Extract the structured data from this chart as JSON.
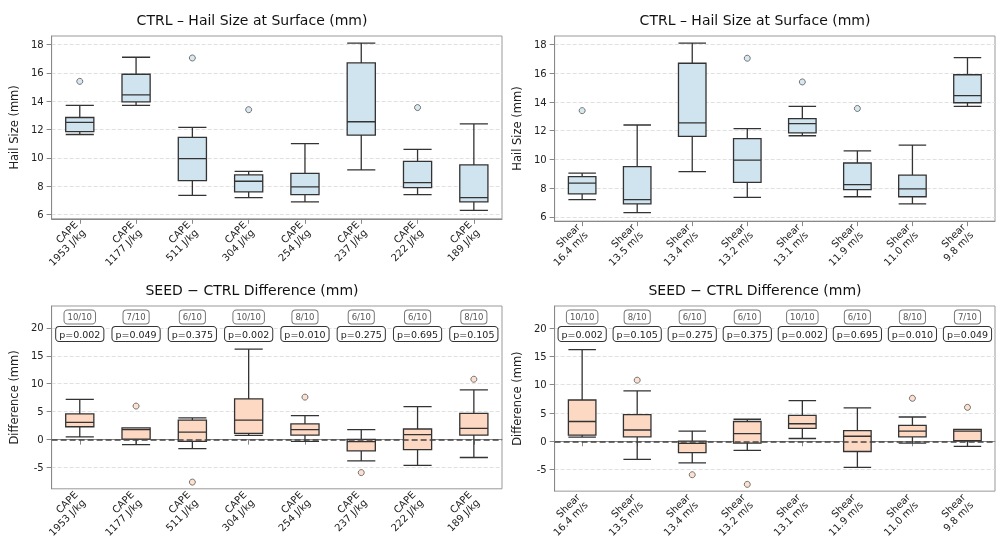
{
  "chart_data": [
    {
      "type": "box",
      "title": "CTRL – Hail Size at Surface (mm)",
      "ylabel": "Hail Size (mm)",
      "categories": [
        "CAPE\n1953 J/kg",
        "CAPE\n1177 J/kg",
        "CAPE\n511 J/kg",
        "CAPE\n304 J/kg",
        "CAPE\n254 J/kg",
        "CAPE\n237 J/kg",
        "CAPE\n222 J/kg",
        "CAPE\n189 J/kg"
      ],
      "ylim": [
        5.7,
        18.6
      ],
      "yticks": [
        6,
        8,
        10,
        12,
        14,
        16,
        18
      ],
      "grid": "y",
      "series": [
        {
          "color": "#d0e4ef",
          "boxes": [
            {
              "low": 11.65,
              "q1": 11.85,
              "median": 12.5,
              "q3": 12.85,
              "high": 13.7,
              "outliers": [
                15.4
              ]
            },
            {
              "low": 13.7,
              "q1": 13.95,
              "median": 14.45,
              "q3": 15.9,
              "high": 17.1
            },
            {
              "low": 7.35,
              "q1": 8.4,
              "median": 9.95,
              "q3": 11.45,
              "high": 12.15,
              "outliers": [
                17.05
              ]
            },
            {
              "low": 7.2,
              "q1": 7.6,
              "median": 8.35,
              "q3": 8.8,
              "high": 9.05,
              "outliers": [
                13.4
              ]
            },
            {
              "low": 6.9,
              "q1": 7.4,
              "median": 7.95,
              "q3": 8.9,
              "high": 11.0
            },
            {
              "low": 9.15,
              "q1": 11.6,
              "median": 12.55,
              "q3": 16.7,
              "high": 18.1
            },
            {
              "low": 7.4,
              "q1": 7.9,
              "median": 8.25,
              "q3": 9.75,
              "high": 10.6,
              "outliers": [
                13.55
              ]
            },
            {
              "low": 6.3,
              "q1": 6.9,
              "median": 7.2,
              "q3": 9.5,
              "high": 12.4
            }
          ]
        }
      ]
    },
    {
      "type": "box",
      "title": "CTRL – Hail Size at Surface (mm)",
      "ylabel": "Hail Size (mm)",
      "categories": [
        "Shear\n16.4 m/s",
        "Shear\n13.5 m/s",
        "Shear\n13.4 m/s",
        "Shear\n13.2 m/s",
        "Shear\n13.1 m/s",
        "Shear\n11.9 m/s",
        "Shear\n11.0 m/s",
        "Shear\n9.8 m/s"
      ],
      "ylim": [
        5.7,
        18.6
      ],
      "yticks": [
        6,
        8,
        10,
        12,
        14,
        16,
        18
      ],
      "grid": "y",
      "series": [
        {
          "color": "#d0e4ef",
          "boxes": [
            {
              "low": 7.2,
              "q1": 7.6,
              "median": 8.35,
              "q3": 8.8,
              "high": 9.05,
              "outliers": [
                13.4
              ]
            },
            {
              "low": 6.3,
              "q1": 6.9,
              "median": 7.2,
              "q3": 9.5,
              "high": 12.4
            },
            {
              "low": 9.15,
              "q1": 11.6,
              "median": 12.55,
              "q3": 16.7,
              "high": 18.1
            },
            {
              "low": 7.35,
              "q1": 8.4,
              "median": 9.95,
              "q3": 11.45,
              "high": 12.15,
              "outliers": [
                17.05
              ]
            },
            {
              "low": 11.65,
              "q1": 11.85,
              "median": 12.5,
              "q3": 12.85,
              "high": 13.7,
              "outliers": [
                15.4
              ]
            },
            {
              "low": 7.4,
              "q1": 7.9,
              "median": 8.25,
              "q3": 9.75,
              "high": 10.6,
              "outliers": [
                13.55
              ]
            },
            {
              "low": 6.9,
              "q1": 7.4,
              "median": 7.95,
              "q3": 8.9,
              "high": 11.0
            },
            {
              "low": 13.7,
              "q1": 13.95,
              "median": 14.45,
              "q3": 15.9,
              "high": 17.1
            }
          ]
        }
      ]
    },
    {
      "type": "box",
      "title": "SEED − CTRL Difference (mm)",
      "ylabel": "Difference (mm)",
      "categories": [
        "CAPE\n1953 J/kg",
        "CAPE\n1177 J/kg",
        "CAPE\n511 J/kg",
        "CAPE\n304 J/kg",
        "CAPE\n254 J/kg",
        "CAPE\n237 J/kg",
        "CAPE\n222 J/kg",
        "CAPE\n189 J/kg"
      ],
      "ylim": [
        -8.8,
        23.9
      ],
      "yticks": [
        -5,
        0,
        5,
        10,
        15,
        20
      ],
      "grid": "y",
      "ref_lines": [
        {
          "axis": "y",
          "value": 0,
          "color": "#444444",
          "line_style": "dashed"
        }
      ],
      "series": [
        {
          "color": "#fdd9c4",
          "boxes": [
            {
              "low": 0.5,
              "q1": 2.3,
              "median": 3.1,
              "q3": 4.6,
              "high": 7.2
            },
            {
              "low": -0.9,
              "q1": 0.1,
              "median": 1.8,
              "q3": 2.1,
              "high": 2.1,
              "outliers": [
                6.0
              ]
            },
            {
              "low": -1.6,
              "q1": -0.3,
              "median": 1.35,
              "q3": 3.5,
              "high": 3.9,
              "outliers": [
                -7.6
              ]
            },
            {
              "low": 0.75,
              "q1": 1.1,
              "median": 3.5,
              "q3": 7.3,
              "high": 16.2
            },
            {
              "low": -0.3,
              "q1": 0.8,
              "median": 1.8,
              "q3": 2.8,
              "high": 4.3,
              "outliers": [
                7.6
              ]
            },
            {
              "low": -3.8,
              "q1": -2.0,
              "median": -0.35,
              "q3": 0.05,
              "high": 1.8,
              "outliers": [
                -5.9
              ]
            },
            {
              "low": -4.6,
              "q1": -1.8,
              "median": 0.9,
              "q3": 1.9,
              "high": 5.9
            },
            {
              "low": -3.2,
              "q1": 0.8,
              "median": 2.0,
              "q3": 4.7,
              "high": 8.9,
              "outliers": [
                10.8
              ]
            }
          ]
        }
      ],
      "annotations": [
        "10/10",
        "p=0.002",
        "7/10",
        "p=0.049",
        "6/10",
        "p=0.375",
        "10/10",
        "p=0.002",
        "8/10",
        "p=0.010",
        "6/10",
        "p=0.275",
        "6/10",
        "p=0.695",
        "8/10",
        "p=0.105"
      ]
    },
    {
      "type": "box",
      "title": "SEED − CTRL Difference (mm)",
      "ylabel": "Difference (mm)",
      "categories": [
        "Shear\n16.4 m/s",
        "Shear\n13.5 m/s",
        "Shear\n13.4 m/s",
        "Shear\n13.2 m/s",
        "Shear\n13.1 m/s",
        "Shear\n11.9 m/s",
        "Shear\n11.0 m/s",
        "Shear\n9.8 m/s"
      ],
      "ylim": [
        -8.8,
        23.9
      ],
      "yticks": [
        -5,
        0,
        5,
        10,
        15,
        20
      ],
      "grid": "y",
      "ref_lines": [
        {
          "axis": "y",
          "value": 0,
          "color": "#444444",
          "line_style": "dashed"
        }
      ],
      "series": [
        {
          "color": "#fdd9c4",
          "boxes": [
            {
              "low": 0.75,
              "q1": 1.1,
              "median": 3.5,
              "q3": 7.3,
              "high": 16.2
            },
            {
              "low": -3.2,
              "q1": 0.8,
              "median": 2.0,
              "q3": 4.7,
              "high": 8.9,
              "outliers": [
                10.8
              ]
            },
            {
              "low": -3.8,
              "q1": -2.0,
              "median": -0.35,
              "q3": 0.05,
              "high": 1.8,
              "outliers": [
                -5.9
              ]
            },
            {
              "low": -1.6,
              "q1": -0.3,
              "median": 1.35,
              "q3": 3.5,
              "high": 3.9,
              "outliers": [
                -7.6
              ]
            },
            {
              "low": 0.5,
              "q1": 2.3,
              "median": 3.1,
              "q3": 4.6,
              "high": 7.2
            },
            {
              "low": -4.6,
              "q1": -1.8,
              "median": 0.9,
              "q3": 1.9,
              "high": 5.9
            },
            {
              "low": -0.3,
              "q1": 0.8,
              "median": 1.8,
              "q3": 2.8,
              "high": 4.3,
              "outliers": [
                7.6
              ]
            },
            {
              "low": -0.9,
              "q1": 0.1,
              "median": 1.8,
              "q3": 2.1,
              "high": 2.1,
              "outliers": [
                6.0
              ]
            }
          ]
        }
      ],
      "annotations": [
        "10/10",
        "p=0.002",
        "8/10",
        "p=0.105",
        "6/10",
        "p=0.275",
        "6/10",
        "p=0.375",
        "10/10",
        "p=0.002",
        "6/10",
        "p=0.695",
        "8/10",
        "p=0.010",
        "7/10",
        "p=0.049"
      ]
    }
  ]
}
